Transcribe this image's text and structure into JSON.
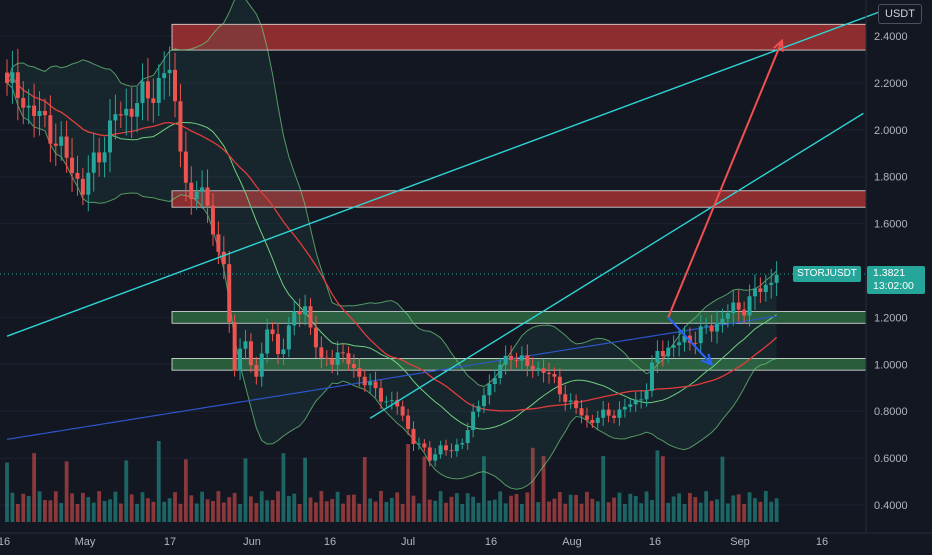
{
  "currency_label": "USDT",
  "symbol_tag": "STORJUSDT",
  "last_price": "1.3821",
  "countdown": "13:02:00",
  "y_tick_labels": [
    "2.4000",
    "2.2000",
    "2.0000",
    "1.8000",
    "1.6000",
    "1.2000",
    "1.0000",
    "0.8000",
    "0.6000",
    "0.4000"
  ],
  "x_tick_labels": [
    "16",
    "May",
    "17",
    "Jun",
    "16",
    "Jul",
    "16",
    "Aug",
    "16",
    "Sep",
    "16"
  ],
  "colors": {
    "background": "#131722",
    "bull": "#26a69a",
    "bear": "#ef5350",
    "trendline": "#2dd4d4",
    "arrow_red": "#f05050",
    "arrow_blue": "#2962ff",
    "supply_zone": "#a83232",
    "demand_zone": "#2e6b3f",
    "ma_red": "#e03c3c",
    "ma_green": "#6fcf7f",
    "ma_blue": "#2c55c8",
    "bands": "#3a8d7d"
  },
  "chart_data": {
    "type": "candlestick",
    "symbol": "STORJUSDT",
    "quote": "USDT",
    "interval": "1D",
    "ylim": [
      0.31,
      2.55
    ],
    "y_ticks": [
      2.4,
      2.2,
      2.0,
      1.8,
      1.6,
      1.2,
      1.0,
      0.8,
      0.6,
      0.4
    ],
    "last_price": 1.3821,
    "zones": [
      {
        "kind": "supply",
        "low": 2.34,
        "high": 2.45
      },
      {
        "kind": "supply",
        "low": 1.67,
        "high": 1.74
      },
      {
        "kind": "demand",
        "low": 1.175,
        "high": 1.225
      },
      {
        "kind": "demand",
        "low": 0.975,
        "high": 1.025
      }
    ],
    "trendlines": [
      {
        "start": {
          "date": "2021-04-16",
          "value": 1.12
        },
        "end": {
          "date": "2021-09-26",
          "value": 2.52
        }
      },
      {
        "start": {
          "date": "2021-06-22",
          "value": 0.77
        },
        "end": {
          "date": "2021-09-21",
          "value": 2.07
        }
      }
    ],
    "arrows": [
      {
        "color": "red",
        "from": {
          "date": "2021-08-16",
          "value": 1.2
        },
        "to": {
          "date": "2021-09-06",
          "value": 2.38
        }
      },
      {
        "color": "blue",
        "from": {
          "date": "2021-08-16",
          "value": 1.2
        },
        "to": {
          "date": "2021-08-24",
          "value": 1.0
        }
      }
    ],
    "volume_range": [
      0,
      1
    ]
  }
}
